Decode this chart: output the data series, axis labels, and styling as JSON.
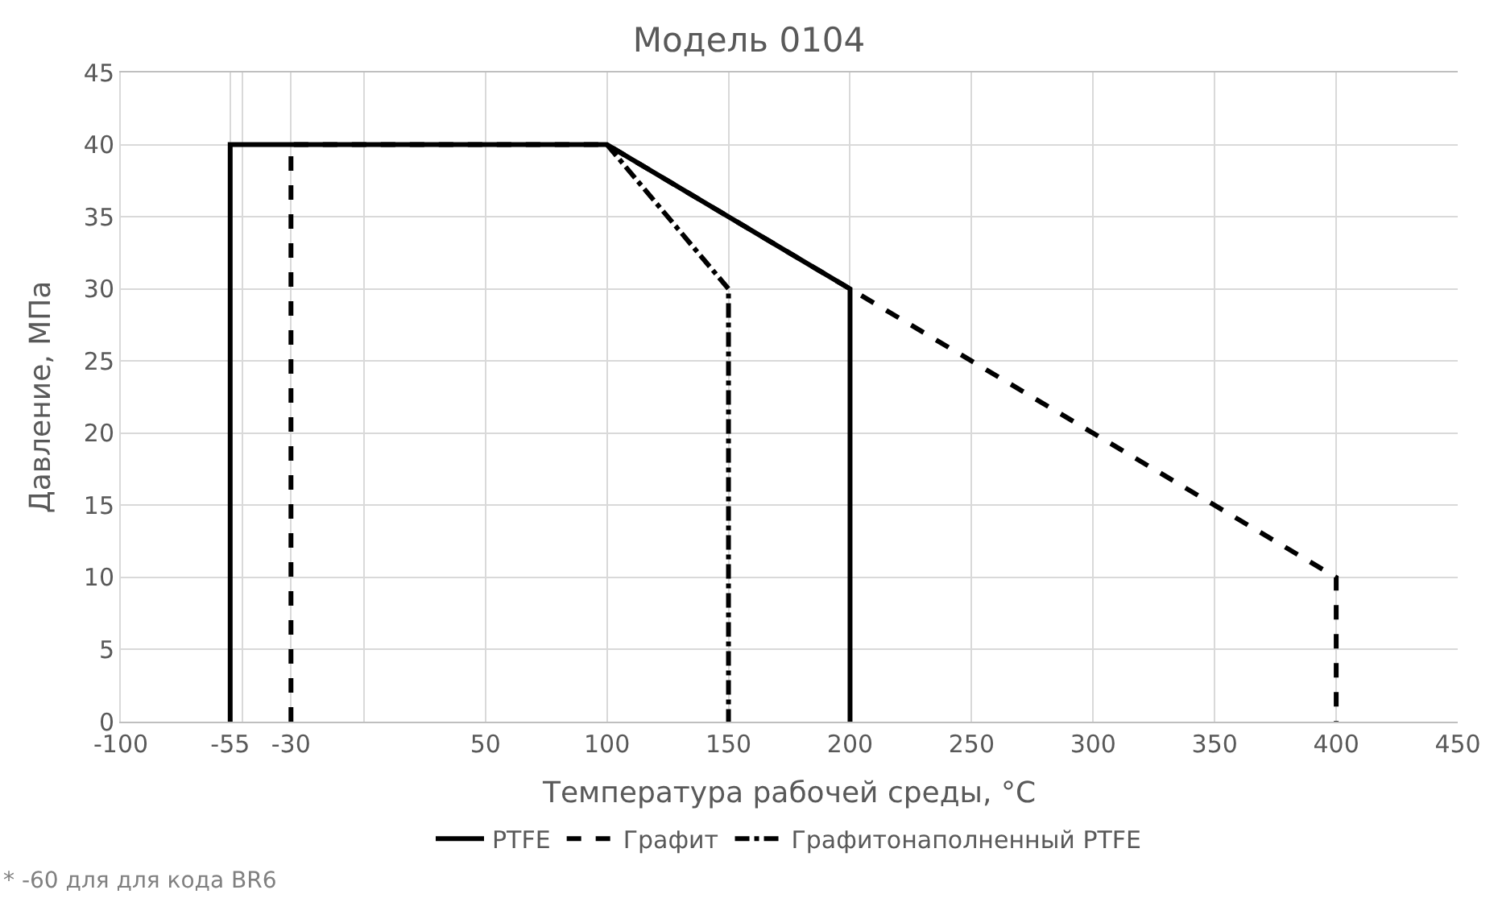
{
  "chart_data": {
    "type": "line",
    "title": "Модель 0104",
    "xlabel": "Температура рабочей среды, °C",
    "ylabel": "Давление, МПа",
    "series": [
      {
        "name": "PTFE",
        "color": "#000000",
        "line_style": "solid",
        "x": [
          -55,
          -55,
          100,
          200,
          200
        ],
        "values": [
          0,
          40,
          40,
          30,
          0
        ]
      },
      {
        "name": "Графит",
        "color": "#000000",
        "line_style": "dashed",
        "x": [
          -30,
          -30,
          100,
          200,
          400,
          400
        ],
        "values": [
          0,
          40,
          40,
          30,
          10,
          0
        ]
      },
      {
        "name": "Графитонаполненный PTFE",
        "color": "#000000",
        "line_style": "dashdot",
        "x": [
          100,
          150,
          150
        ],
        "values": [
          40,
          30,
          0
        ]
      }
    ],
    "xlim": [
      -100,
      450
    ],
    "xticks": [
      -100,
      {
        "value": -50,
        "label": null
      },
      -55,
      -30,
      {
        "value": 0,
        "label": null
      },
      50,
      100,
      150,
      200,
      250,
      300,
      350,
      400,
      450
    ],
    "ylim": [
      0,
      45
    ],
    "yticks": [
      0,
      5,
      10,
      15,
      20,
      25,
      30,
      35,
      40,
      45
    ],
    "grid": true,
    "legend": "bottom",
    "marker": "none",
    "annotations": [
      "* -60 для для кода BR6"
    ]
  }
}
